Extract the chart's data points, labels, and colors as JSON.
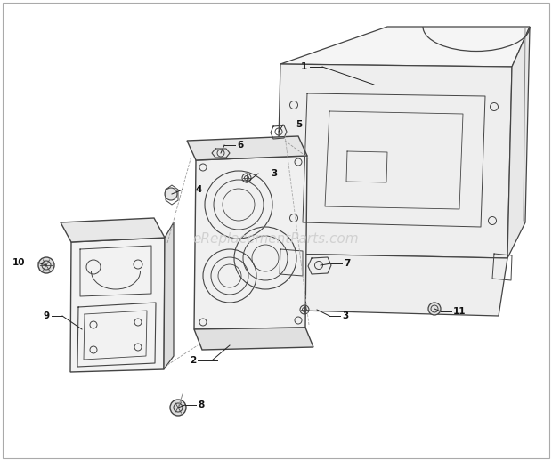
{
  "background_color": "#ffffff",
  "border_color": "#aaaaaa",
  "line_color": "#444444",
  "light_line_color": "#888888",
  "watermark_text": "eReplacementParts.com",
  "watermark_color": "#cccccc",
  "watermark_fontsize": 11,
  "fig_width": 6.2,
  "fig_height": 5.18,
  "dpi": 100
}
